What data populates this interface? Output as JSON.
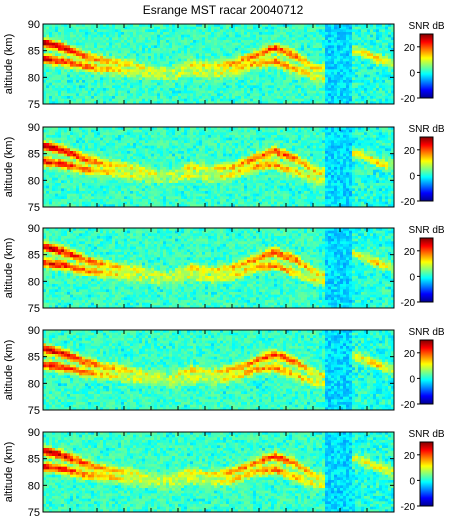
{
  "chart_data": {
    "type": "heatmap",
    "title": "Esrange MST racar 20040712",
    "panels": [
      {
        "ylabel": "altitude (km)",
        "yticks": [
          90,
          85,
          80,
          75
        ],
        "ylim": [
          75,
          90
        ],
        "colorbar_label": "SNR dB",
        "colorbar_ticks": [
          20,
          0,
          -20
        ],
        "colorbar_range": [
          -20,
          30
        ]
      },
      {
        "ylabel": "altitude (km)",
        "yticks": [
          90,
          85,
          80,
          75
        ],
        "ylim": [
          75,
          90
        ],
        "colorbar_label": "SNR dB",
        "colorbar_ticks": [
          20,
          0,
          -20
        ],
        "colorbar_range": [
          -20,
          30
        ]
      },
      {
        "ylabel": "altitude (km)",
        "yticks": [
          90,
          85,
          80,
          75
        ],
        "ylim": [
          75,
          90
        ],
        "colorbar_label": "SNR dB",
        "colorbar_ticks": [
          20,
          0,
          -20
        ],
        "colorbar_range": [
          -20,
          30
        ]
      },
      {
        "ylabel": "altitude (km)",
        "yticks": [
          90,
          85,
          80,
          75
        ],
        "ylim": [
          75,
          90
        ],
        "colorbar_label": "SNR dB",
        "colorbar_ticks": [
          20,
          0,
          -20
        ],
        "colorbar_range": [
          -20,
          30
        ]
      },
      {
        "ylabel": "altitude (km)",
        "yticks": [
          90,
          85,
          80,
          75
        ],
        "ylim": [
          75,
          90
        ],
        "colorbar_label": "SNR dB",
        "colorbar_ticks": [
          20,
          0,
          -20
        ],
        "colorbar_range": [
          -20,
          30
        ]
      }
    ],
    "echo_layers": [
      {
        "x": [
          0,
          0.06,
          0.12,
          0.18,
          0.24,
          0.3,
          0.36,
          0.42,
          0.48,
          0.54,
          0.6,
          0.66,
          0.72,
          0.78
        ],
        "altitude": [
          86.5,
          85.5,
          84,
          83,
          82.5,
          81.5,
          81,
          82.5,
          82,
          82.5,
          84,
          85.5,
          84,
          81.5
        ],
        "snr_db": [
          28,
          25,
          20,
          15,
          12,
          10,
          8,
          12,
          10,
          15,
          18,
          22,
          18,
          12
        ]
      },
      {
        "x": [
          0,
          0.06,
          0.12,
          0.18,
          0.24,
          0.3,
          0.36,
          0.42,
          0.48,
          0.54,
          0.6,
          0.66,
          0.72,
          0.78
        ],
        "altitude": [
          83.5,
          83,
          82,
          81.5,
          81,
          80.5,
          80,
          81,
          80.5,
          81,
          82.5,
          83,
          81.5,
          80
        ],
        "snr_db": [
          25,
          22,
          18,
          14,
          10,
          8,
          6,
          10,
          8,
          12,
          15,
          18,
          14,
          10
        ]
      },
      {
        "x": [
          0.9,
          0.95,
          1.0
        ],
        "altitude": [
          85,
          83.5,
          82.5
        ],
        "snr_db": [
          10,
          14,
          8
        ]
      }
    ]
  }
}
